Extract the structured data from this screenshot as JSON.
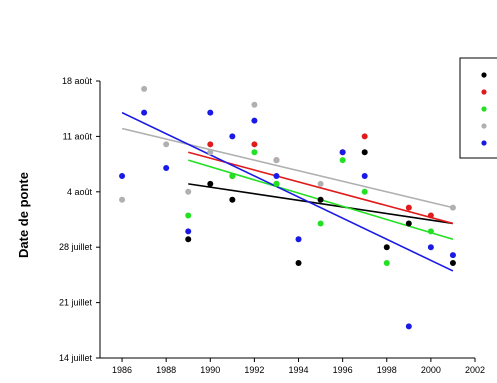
{
  "chart_data": {
    "type": "scatter",
    "title": "",
    "xlabel": "",
    "ylabel": "Date de ponte",
    "xlim": [
      1985,
      2002
    ],
    "ylim": [
      "14 juillet",
      "18 août"
    ],
    "x_ticks": [
      "1986",
      "1988",
      "1990",
      "1992",
      "1994",
      "1996",
      "1998",
      "2000",
      "2002"
    ],
    "y_ticks": [
      "14 juillet",
      "21 juillet",
      "28 juillet",
      "4 août",
      "11 août",
      "18 août"
    ],
    "grid": false,
    "legend_position": "top-right",
    "series": [
      {
        "color": "#000000",
        "points": [
          {
            "x": 1989,
            "y": "29 juillet"
          },
          {
            "x": 1990,
            "y": "5 août"
          },
          {
            "x": 1991,
            "y": "3 août"
          },
          {
            "x": 1993,
            "y": "5 août"
          },
          {
            "x": 1994,
            "y": "26 juillet"
          },
          {
            "x": 1995,
            "y": "3 août"
          },
          {
            "x": 1997,
            "y": "9 août"
          },
          {
            "x": 1998,
            "y": "28 juillet"
          },
          {
            "x": 1999,
            "y": "31 juillet"
          },
          {
            "x": 2001,
            "y": "26 juillet"
          }
        ],
        "trend": [
          {
            "x": 1989,
            "y": "5 août"
          },
          {
            "x": 2001,
            "y": "31 juillet"
          }
        ]
      },
      {
        "color": "#e01b1b",
        "points": [
          {
            "x": 1990,
            "y": "10 août"
          },
          {
            "x": 1991,
            "y": "6 août"
          },
          {
            "x": 1992,
            "y": "10 août"
          },
          {
            "x": 1993,
            "y": "8 août"
          },
          {
            "x": 1996,
            "y": "9 août"
          },
          {
            "x": 1997,
            "y": "11 août"
          },
          {
            "x": 1999,
            "y": "2 août"
          },
          {
            "x": 2000,
            "y": "1 août"
          }
        ],
        "trend": [
          {
            "x": 1989,
            "y": "9 août"
          },
          {
            "x": 2001,
            "y": "31 juillet"
          }
        ]
      },
      {
        "color": "#22e022",
        "points": [
          {
            "x": 1989,
            "y": "1 août"
          },
          {
            "x": 1991,
            "y": "6 août"
          },
          {
            "x": 1992,
            "y": "9 août"
          },
          {
            "x": 1993,
            "y": "5 août"
          },
          {
            "x": 1995,
            "y": "31 juillet"
          },
          {
            "x": 1996,
            "y": "8 août"
          },
          {
            "x": 1997,
            "y": "4 août"
          },
          {
            "x": 1998,
            "y": "26 juillet"
          },
          {
            "x": 2000,
            "y": "30 juillet"
          }
        ],
        "trend": [
          {
            "x": 1989,
            "y": "8 août"
          },
          {
            "x": 2001,
            "y": "29 juillet"
          }
        ]
      },
      {
        "color": "#b0b0b0",
        "points": [
          {
            "x": 1986,
            "y": "3 août"
          },
          {
            "x": 1987,
            "y": "17 août"
          },
          {
            "x": 1988,
            "y": "10 août"
          },
          {
            "x": 1989,
            "y": "4 août"
          },
          {
            "x": 1990,
            "y": "9 août"
          },
          {
            "x": 1992,
            "y": "15 août"
          },
          {
            "x": 1993,
            "y": "8 août"
          },
          {
            "x": 1994,
            "y": "29 juillet"
          },
          {
            "x": 1995,
            "y": "5 août"
          },
          {
            "x": 2001,
            "y": "2 août"
          }
        ],
        "trend": [
          {
            "x": 1986,
            "y": "12 août"
          },
          {
            "x": 2001,
            "y": "2 août"
          }
        ]
      },
      {
        "color": "#1a1ae6",
        "points": [
          {
            "x": 1986,
            "y": "6 août"
          },
          {
            "x": 1987,
            "y": "14 août"
          },
          {
            "x": 1988,
            "y": "7 août"
          },
          {
            "x": 1989,
            "y": "30 juillet"
          },
          {
            "x": 1990,
            "y": "14 août"
          },
          {
            "x": 1991,
            "y": "11 août"
          },
          {
            "x": 1992,
            "y": "13 août"
          },
          {
            "x": 1993,
            "y": "6 août"
          },
          {
            "x": 1994,
            "y": "29 juillet"
          },
          {
            "x": 1996,
            "y": "9 août"
          },
          {
            "x": 1997,
            "y": "6 août"
          },
          {
            "x": 1999,
            "y": "18 juillet"
          },
          {
            "x": 2000,
            "y": "28 juillet"
          },
          {
            "x": 2001,
            "y": "27 juillet"
          }
        ],
        "trend": [
          {
            "x": 1986,
            "y": "14 août"
          },
          {
            "x": 2001,
            "y": "25 juillet"
          }
        ]
      }
    ]
  }
}
